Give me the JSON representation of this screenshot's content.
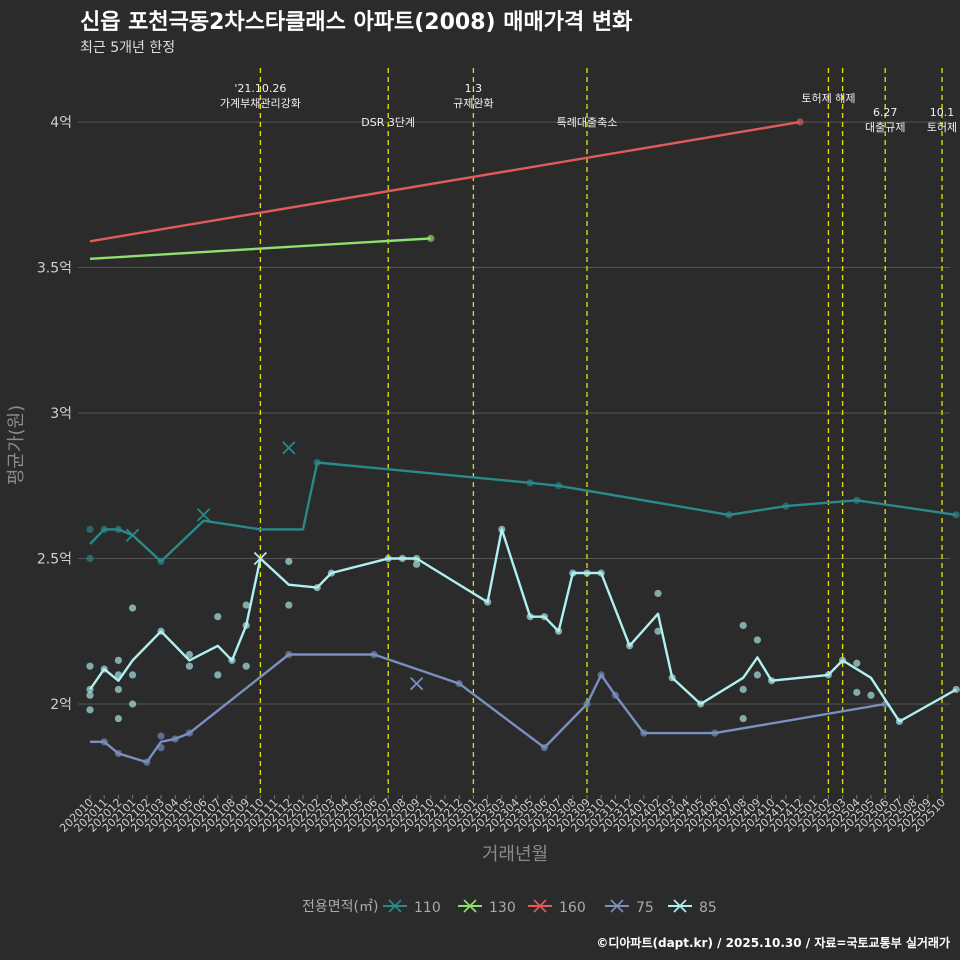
{
  "header": {
    "title": "신읍 포천극동2차스타클래스 아파트(2008) 매매가격 변화",
    "subtitle": "최근 5개년 한정"
  },
  "caption": "©디아파트(dapt.kr) / 2025.10.30 / 자료=국토교통부 실거래가",
  "colors": {
    "background": "#2b2b2b",
    "grid": "#555555",
    "event_line": "#e5e500"
  },
  "chart_data": {
    "type": "line",
    "xlabel": "거래년월",
    "ylabel": "평균가(원)",
    "ylim": [
      1.7,
      4.2
    ],
    "categories": [
      "202010",
      "202011",
      "202012",
      "202101",
      "202102",
      "202103",
      "202104",
      "202105",
      "202106",
      "202107",
      "202108",
      "202109",
      "202110",
      "202111",
      "202112",
      "202201",
      "202202",
      "202203",
      "202204",
      "202205",
      "202206",
      "202207",
      "202208",
      "202209",
      "202210",
      "202211",
      "202212",
      "202301",
      "202302",
      "202303",
      "202304",
      "202305",
      "202306",
      "202307",
      "202308",
      "202309",
      "202310",
      "202311",
      "202312",
      "202401",
      "202402",
      "202403",
      "202404",
      "202405",
      "202406",
      "202407",
      "202408",
      "202409",
      "202410",
      "202411",
      "202412",
      "202501",
      "202502",
      "202503",
      "202504",
      "202505",
      "202506",
      "202507",
      "202508",
      "202509",
      "202510"
    ],
    "y_ticks": [
      {
        "value": 2.0,
        "label": "2억"
      },
      {
        "value": 2.5,
        "label": "2.5억"
      },
      {
        "value": 3.0,
        "label": "3억"
      },
      {
        "value": 3.5,
        "label": "3.5억"
      },
      {
        "value": 4.0,
        "label": "4억"
      }
    ],
    "legend_title": "전용면적(㎡)",
    "series": [
      {
        "name": "110",
        "color": "#2a8a8a",
        "line": [
          [
            0,
            2.55
          ],
          [
            1,
            2.6
          ],
          [
            2,
            2.6
          ],
          [
            3,
            2.58
          ],
          [
            5,
            2.49
          ],
          [
            8,
            2.63
          ],
          [
            12,
            2.6
          ],
          [
            15,
            2.6
          ],
          [
            16,
            2.83
          ],
          [
            31,
            2.76
          ],
          [
            33,
            2.75
          ],
          [
            45,
            2.65
          ],
          [
            49,
            2.68
          ],
          [
            54,
            2.7
          ],
          [
            61,
            2.65
          ]
        ],
        "points": [
          [
            0,
            2.6
          ],
          [
            0,
            2.5
          ],
          [
            1,
            2.6
          ],
          [
            2,
            2.6
          ],
          [
            5,
            2.49
          ],
          [
            16,
            2.83
          ],
          [
            31,
            2.76
          ],
          [
            33,
            2.75
          ],
          [
            45,
            2.65
          ],
          [
            49,
            2.68
          ],
          [
            54,
            2.7
          ],
          [
            61,
            2.65
          ]
        ],
        "crosses": [
          [
            3,
            2.58
          ],
          [
            8,
            2.65
          ],
          [
            14,
            2.88
          ]
        ]
      },
      {
        "name": "130",
        "color": "#90e070",
        "line": [
          [
            0,
            3.53
          ],
          [
            24,
            3.6
          ]
        ],
        "points": [
          [
            24,
            3.6
          ]
        ],
        "crosses": []
      },
      {
        "name": "160",
        "color": "#e05c5c",
        "line": [
          [
            0,
            3.59
          ],
          [
            50,
            4.0
          ]
        ],
        "points": [
          [
            50,
            4.0
          ]
        ],
        "crosses": []
      },
      {
        "name": "75",
        "color": "#7a90c0",
        "line": [
          [
            0,
            1.87
          ],
          [
            1,
            1.87
          ],
          [
            2,
            1.83
          ],
          [
            4,
            1.8
          ],
          [
            5,
            1.87
          ],
          [
            6,
            1.88
          ],
          [
            7,
            1.9
          ],
          [
            14,
            2.17
          ],
          [
            20,
            2.17
          ],
          [
            26,
            2.07
          ],
          [
            32,
            1.85
          ],
          [
            35,
            2.0
          ],
          [
            36,
            2.1
          ],
          [
            37,
            2.03
          ],
          [
            39,
            1.9
          ],
          [
            44,
            1.9
          ],
          [
            56,
            2.0
          ]
        ],
        "points": [
          [
            1,
            1.87
          ],
          [
            2,
            1.83
          ],
          [
            4,
            1.8
          ],
          [
            5,
            1.89
          ],
          [
            5,
            1.85
          ],
          [
            6,
            1.88
          ],
          [
            7,
            1.9
          ],
          [
            14,
            2.17
          ],
          [
            20,
            2.17
          ],
          [
            26,
            2.07
          ],
          [
            32,
            1.85
          ],
          [
            35,
            2.0
          ],
          [
            36,
            2.1
          ],
          [
            37,
            2.03
          ],
          [
            39,
            1.9
          ],
          [
            44,
            1.9
          ],
          [
            56,
            2.0
          ]
        ],
        "crosses": [
          [
            23,
            2.07
          ]
        ]
      },
      {
        "name": "85",
        "color": "#b0f0f0",
        "line": [
          [
            0,
            2.05
          ],
          [
            1,
            2.12
          ],
          [
            2,
            2.08
          ],
          [
            3,
            2.15
          ],
          [
            5,
            2.25
          ],
          [
            7,
            2.15
          ],
          [
            9,
            2.2
          ],
          [
            10,
            2.15
          ],
          [
            11,
            2.27
          ],
          [
            12,
            2.5
          ],
          [
            14,
            2.41
          ],
          [
            16,
            2.4
          ],
          [
            17,
            2.45
          ],
          [
            21,
            2.5
          ],
          [
            22,
            2.5
          ],
          [
            23,
            2.5
          ],
          [
            28,
            2.35
          ],
          [
            29,
            2.6
          ],
          [
            31,
            2.3
          ],
          [
            32,
            2.3
          ],
          [
            33,
            2.25
          ],
          [
            34,
            2.45
          ],
          [
            35,
            2.45
          ],
          [
            36,
            2.45
          ],
          [
            38,
            2.2
          ],
          [
            40,
            2.31
          ],
          [
            41,
            2.09
          ],
          [
            43,
            2.0
          ],
          [
            46,
            2.09
          ],
          [
            47,
            2.16
          ],
          [
            48,
            2.08
          ],
          [
            52,
            2.1
          ],
          [
            53,
            2.15
          ],
          [
            55,
            2.09
          ],
          [
            57,
            1.94
          ],
          [
            61,
            2.05
          ]
        ],
        "points": [
          [
            0,
            2.13
          ],
          [
            0,
            2.05
          ],
          [
            0,
            2.03
          ],
          [
            0,
            1.98
          ],
          [
            1,
            2.12
          ],
          [
            2,
            2.15
          ],
          [
            2,
            2.1
          ],
          [
            2,
            2.05
          ],
          [
            2,
            1.95
          ],
          [
            3,
            2.33
          ],
          [
            3,
            2.1
          ],
          [
            3,
            2.0
          ],
          [
            5,
            2.25
          ],
          [
            7,
            2.17
          ],
          [
            7,
            2.13
          ],
          [
            9,
            2.3
          ],
          [
            9,
            2.1
          ],
          [
            10,
            2.15
          ],
          [
            11,
            2.34
          ],
          [
            11,
            2.27
          ],
          [
            11,
            2.13
          ],
          [
            14,
            2.49
          ],
          [
            14,
            2.34
          ],
          [
            16,
            2.4
          ],
          [
            17,
            2.45
          ],
          [
            21,
            2.5
          ],
          [
            22,
            2.5
          ],
          [
            23,
            2.5
          ],
          [
            23,
            2.48
          ],
          [
            28,
            2.35
          ],
          [
            29,
            2.6
          ],
          [
            31,
            2.3
          ],
          [
            32,
            2.3
          ],
          [
            33,
            2.25
          ],
          [
            34,
            2.45
          ],
          [
            35,
            2.45
          ],
          [
            36,
            2.45
          ],
          [
            38,
            2.2
          ],
          [
            40,
            2.38
          ],
          [
            40,
            2.25
          ],
          [
            41,
            2.09
          ],
          [
            43,
            2.0
          ],
          [
            46,
            2.27
          ],
          [
            46,
            2.05
          ],
          [
            46,
            1.95
          ],
          [
            47,
            2.22
          ],
          [
            47,
            2.1
          ],
          [
            48,
            2.08
          ],
          [
            52,
            2.1
          ],
          [
            53,
            2.15
          ],
          [
            54,
            2.14
          ],
          [
            54,
            2.04
          ],
          [
            55,
            2.03
          ],
          [
            57,
            1.94
          ],
          [
            61,
            2.05
          ]
        ],
        "crosses": [
          [
            12,
            2.5
          ]
        ]
      }
    ],
    "events": [
      {
        "x": 12,
        "lines": [
          "'21.10.26",
          "가계부채관리강화"
        ],
        "tier": 0
      },
      {
        "x": 21,
        "lines": [
          "DSR 3단계"
        ],
        "tier": 2
      },
      {
        "x": 27,
        "lines": [
          "1.3",
          "규제완화"
        ],
        "tier": 0
      },
      {
        "x": 35,
        "lines": [
          "특례대출축소"
        ],
        "tier": 2
      },
      {
        "x": 52,
        "lines": [
          "토허제 해제"
        ],
        "tier": 1
      },
      {
        "x": 53,
        "lines": [],
        "tier": 1
      },
      {
        "x": 56,
        "lines": [
          "6.27",
          "대출규제"
        ],
        "tier": 3
      },
      {
        "x": 60,
        "lines": [
          "10.1",
          "토허제"
        ],
        "tier": 3
      }
    ]
  }
}
